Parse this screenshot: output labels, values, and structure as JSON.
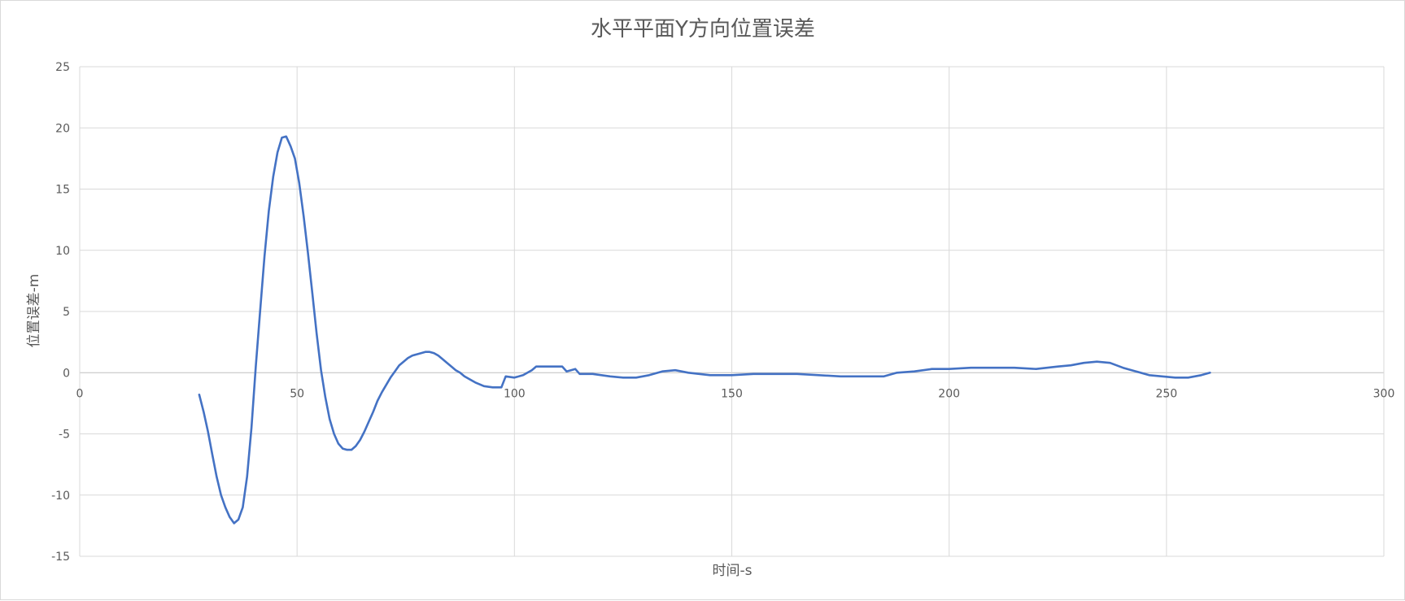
{
  "chart_data": {
    "type": "line",
    "title": "水平平面Y方向位置误差",
    "xlabel": "时间-s",
    "ylabel": "位置误差-m",
    "xlim": [
      0,
      300
    ],
    "ylim": [
      -15,
      25
    ],
    "x_ticks": [
      0,
      50,
      100,
      150,
      200,
      250,
      300
    ],
    "y_ticks": [
      -15,
      -10,
      -5,
      0,
      5,
      10,
      15,
      20,
      25
    ],
    "grid": true,
    "legend": "none",
    "line_color": "#4472C4",
    "grid_color": "#d9d9d9",
    "series": [
      {
        "points": [
          [
            27.5,
            -1.8
          ],
          [
            28.5,
            -3.2
          ],
          [
            29.5,
            -4.8
          ],
          [
            30.5,
            -6.7
          ],
          [
            31.5,
            -8.5
          ],
          [
            32.5,
            -10.0
          ],
          [
            33.5,
            -11.0
          ],
          [
            34.5,
            -11.8
          ],
          [
            35.5,
            -12.3
          ],
          [
            36.5,
            -12.0
          ],
          [
            37.5,
            -11.0
          ],
          [
            38.5,
            -8.5
          ],
          [
            39.5,
            -4.5
          ],
          [
            40.5,
            0.5
          ],
          [
            41.5,
            5.0
          ],
          [
            42.5,
            9.5
          ],
          [
            43.5,
            13.2
          ],
          [
            44.5,
            16.0
          ],
          [
            45.5,
            18.0
          ],
          [
            46.5,
            19.2
          ],
          [
            47.5,
            19.3
          ],
          [
            48.5,
            18.5
          ],
          [
            49.5,
            17.5
          ],
          [
            50.5,
            15.5
          ],
          [
            51.5,
            12.8
          ],
          [
            52.5,
            9.8
          ],
          [
            53.5,
            6.5
          ],
          [
            54.5,
            3.2
          ],
          [
            55.5,
            0.2
          ],
          [
            56.5,
            -2.0
          ],
          [
            57.5,
            -3.8
          ],
          [
            58.5,
            -5.0
          ],
          [
            59.5,
            -5.8
          ],
          [
            60.5,
            -6.2
          ],
          [
            61.5,
            -6.3
          ],
          [
            62.5,
            -6.3
          ],
          [
            63.5,
            -6.0
          ],
          [
            64.5,
            -5.5
          ],
          [
            65.5,
            -4.8
          ],
          [
            66.5,
            -4.0
          ],
          [
            67.5,
            -3.2
          ],
          [
            68.5,
            -2.3
          ],
          [
            69.5,
            -1.6
          ],
          [
            70.5,
            -1.0
          ],
          [
            71.5,
            -0.4
          ],
          [
            72.5,
            0.1
          ],
          [
            73.5,
            0.6
          ],
          [
            74.5,
            0.9
          ],
          [
            75.5,
            1.2
          ],
          [
            76.5,
            1.4
          ],
          [
            77.5,
            1.5
          ],
          [
            78.5,
            1.6
          ],
          [
            79.5,
            1.7
          ],
          [
            80.5,
            1.7
          ],
          [
            81.5,
            1.6
          ],
          [
            82.5,
            1.4
          ],
          [
            83.5,
            1.1
          ],
          [
            84.5,
            0.8
          ],
          [
            85.5,
            0.5
          ],
          [
            86.5,
            0.2
          ],
          [
            87.5,
            0.0
          ],
          [
            88.5,
            -0.3
          ],
          [
            89.5,
            -0.5
          ],
          [
            91.0,
            -0.8
          ],
          [
            93.0,
            -1.1
          ],
          [
            95.0,
            -1.2
          ],
          [
            97.0,
            -1.2
          ],
          [
            98.0,
            -0.3
          ],
          [
            100.0,
            -0.4
          ],
          [
            102.0,
            -0.2
          ],
          [
            104.0,
            0.2
          ],
          [
            105.0,
            0.5
          ],
          [
            108.0,
            0.5
          ],
          [
            111.0,
            0.5
          ],
          [
            112.0,
            0.1
          ],
          [
            114.0,
            0.3
          ],
          [
            115.0,
            -0.1
          ],
          [
            118.0,
            -0.1
          ],
          [
            120.0,
            -0.2
          ],
          [
            122.0,
            -0.3
          ],
          [
            125.0,
            -0.4
          ],
          [
            128.0,
            -0.4
          ],
          [
            131.0,
            -0.2
          ],
          [
            134.0,
            0.1
          ],
          [
            137.0,
            0.2
          ],
          [
            140.0,
            0.0
          ],
          [
            145.0,
            -0.2
          ],
          [
            150.0,
            -0.2
          ],
          [
            155.0,
            -0.1
          ],
          [
            160.0,
            -0.1
          ],
          [
            165.0,
            -0.1
          ],
          [
            170.0,
            -0.2
          ],
          [
            175.0,
            -0.3
          ],
          [
            180.0,
            -0.3
          ],
          [
            185.0,
            -0.3
          ],
          [
            188.0,
            0.0
          ],
          [
            192.0,
            0.1
          ],
          [
            196.0,
            0.3
          ],
          [
            200.0,
            0.3
          ],
          [
            205.0,
            0.4
          ],
          [
            210.0,
            0.4
          ],
          [
            215.0,
            0.4
          ],
          [
            220.0,
            0.3
          ],
          [
            225.0,
            0.5
          ],
          [
            228.0,
            0.6
          ],
          [
            231.0,
            0.8
          ],
          [
            234.0,
            0.9
          ],
          [
            237.0,
            0.8
          ],
          [
            240.0,
            0.4
          ],
          [
            243.0,
            0.1
          ],
          [
            246.0,
            -0.2
          ],
          [
            249.0,
            -0.3
          ],
          [
            252.0,
            -0.4
          ],
          [
            255.0,
            -0.4
          ],
          [
            258.0,
            -0.2
          ],
          [
            260.0,
            0.0
          ]
        ]
      }
    ]
  }
}
